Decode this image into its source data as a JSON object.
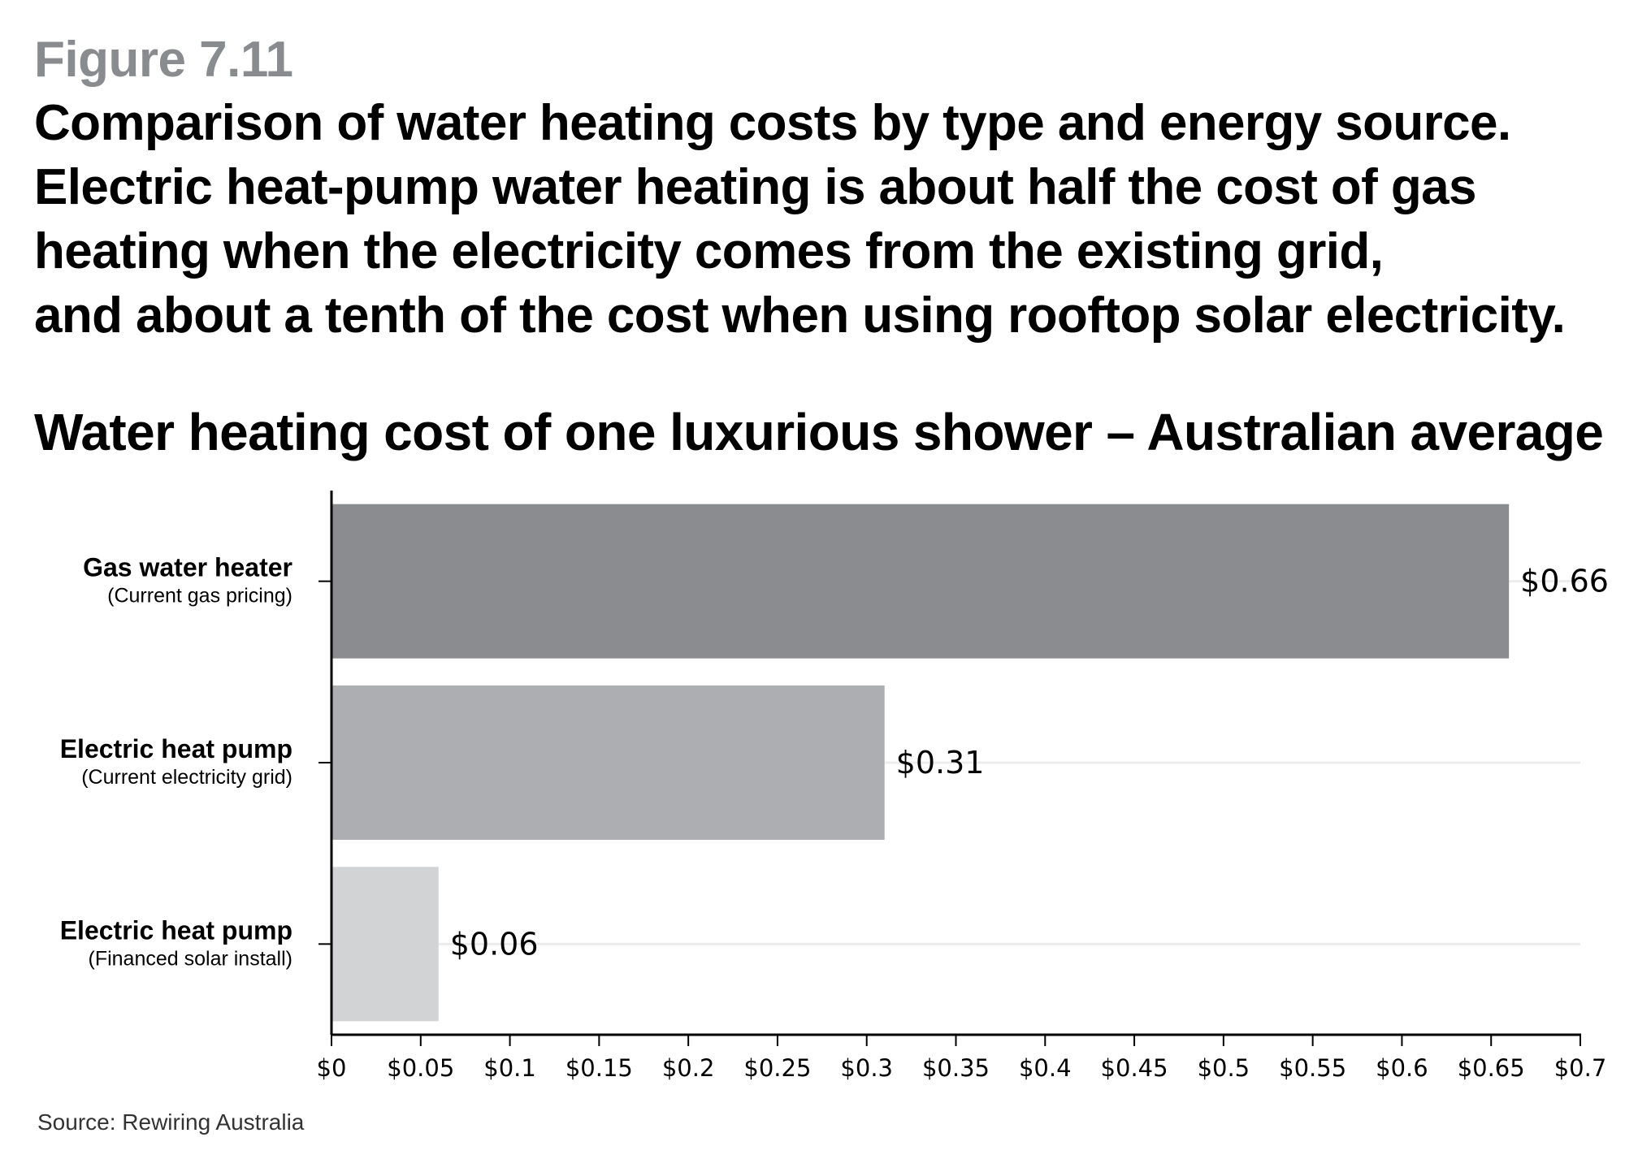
{
  "figure": {
    "label": "Figure 7.11",
    "caption_lines": [
      "Comparison of water heating costs by type and energy source.",
      "Electric heat-pump water heating is about half the cost of gas",
      "heating when the electricity comes from the existing grid,",
      "and about a tenth of the cost when using rooftop solar electricity."
    ]
  },
  "source": "Source: Rewiring Australia",
  "chart_data": {
    "type": "bar",
    "orientation": "horizontal",
    "title": "Water heating cost of one luxurious shower – Australian average",
    "categories": [
      {
        "name": "Gas water heater",
        "sub": "(Current gas pricing)"
      },
      {
        "name": "Electric heat pump",
        "sub": "(Current electricity grid)"
      },
      {
        "name": "Electric heat pump",
        "sub": "(Financed solar install)"
      }
    ],
    "values": [
      0.66,
      0.31,
      0.06
    ],
    "data_labels": [
      "$0.66",
      "$0.31",
      "$0.06"
    ],
    "bar_colors": [
      "#8b8c8f",
      "#adaeb1",
      "#d2d3d5"
    ],
    "xlim": [
      0,
      0.7
    ],
    "xticks": [
      0,
      0.05,
      0.1,
      0.15,
      0.2,
      0.25,
      0.3,
      0.35,
      0.4,
      0.45,
      0.5,
      0.55,
      0.6,
      0.65,
      0.7
    ],
    "xtick_labels": [
      "$0",
      "$0.05",
      "$0.1",
      "$0.15",
      "$0.2",
      "$0.25",
      "$0.3",
      "$0.35",
      "$0.4",
      "$0.45",
      "$0.5",
      "$0.55",
      "$0.6",
      "$0.65",
      "$0.7"
    ],
    "grid": "vertical-category gridlines, light",
    "legend": "none"
  }
}
